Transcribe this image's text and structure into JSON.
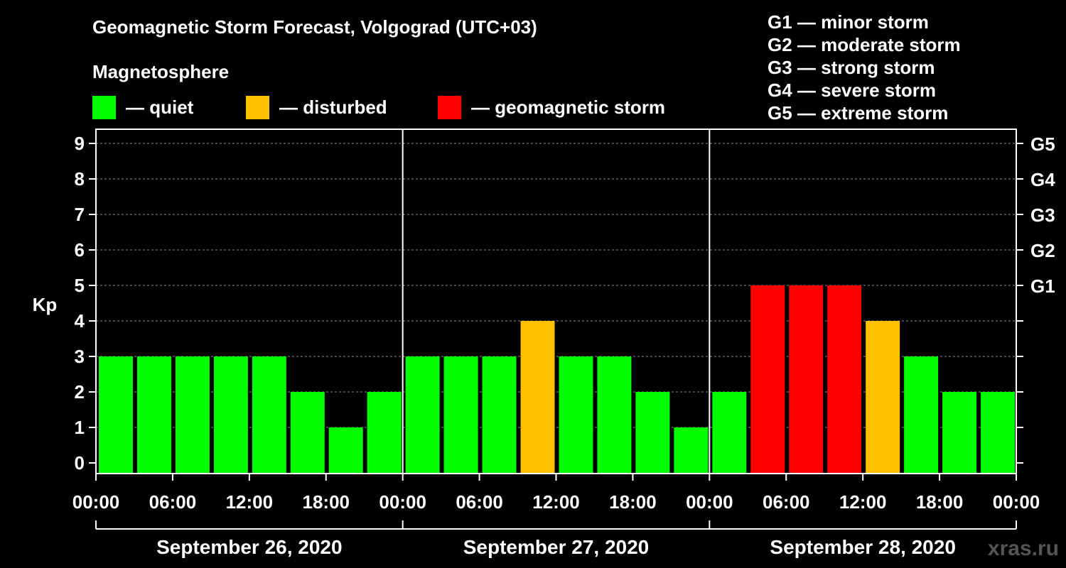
{
  "header": {
    "title": "Geomagnetic Storm Forecast, Volgograd (UTC+03)",
    "subtitle": "Magnetosphere"
  },
  "legend": [
    {
      "label": "— quiet",
      "color": "#00FF00"
    },
    {
      "label": "— disturbed",
      "color": "#FFC000"
    },
    {
      "label": "— geomagnetic storm",
      "color": "#FF0000"
    }
  ],
  "storm_scale": [
    "G1 — minor storm",
    "G2 — moderate storm",
    "G3 — strong storm",
    "G4 — severe storm",
    "G5 — extreme storm"
  ],
  "watermark": "xras.ru",
  "chart_data": {
    "type": "bar",
    "ylabel": "Kp",
    "ylim": [
      0,
      9
    ],
    "yticks": [
      "0",
      "1",
      "2",
      "3",
      "4",
      "5",
      "6",
      "7",
      "8",
      "9"
    ],
    "right_ticks": [
      {
        "kp": 5,
        "label": "G1"
      },
      {
        "kp": 6,
        "label": "G2"
      },
      {
        "kp": 7,
        "label": "G3"
      },
      {
        "kp": 8,
        "label": "G4"
      },
      {
        "kp": 9,
        "label": "G5"
      }
    ],
    "xtick_labels": [
      "00:00",
      "06:00",
      "12:00",
      "18:00",
      "00:00",
      "06:00",
      "12:00",
      "18:00",
      "00:00",
      "06:00",
      "12:00",
      "18:00",
      "00:00"
    ],
    "days": [
      "September 26, 2020",
      "September 27, 2020",
      "September 28, 2020"
    ],
    "values": [
      3,
      3,
      3,
      3,
      3,
      2,
      1,
      2,
      3,
      3,
      3,
      4,
      3,
      3,
      2,
      1,
      2,
      5,
      5,
      5,
      4,
      3,
      2,
      2
    ],
    "colors": {
      "quiet": "#00FF00",
      "disturbed": "#FFC000",
      "storm": "#FF0000"
    }
  }
}
